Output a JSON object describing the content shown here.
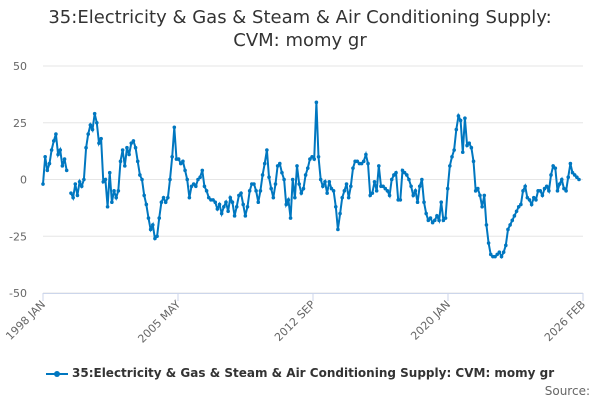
{
  "title_line1": "35:Electricity & Gas & Steam & Air Conditioning Supply:",
  "title_line2": "CVM: momy gr",
  "legend_label": "35:Electricity & Gas & Steam & Air Conditioning Supply: CVM: momy gr",
  "source_label": "Source:",
  "colors": {
    "series": "#0077c0",
    "grid": "#e6e6e6",
    "axis": "#ccd6eb"
  },
  "chart_data": {
    "type": "line",
    "title": "35:Electricity & Gas & Steam & Air Conditioning Supply: CVM: momy gr",
    "xlabel": "",
    "ylabel": "",
    "x_start": "1998 JAN",
    "x_end": "2026 FEB",
    "ylim": [
      -50,
      50
    ],
    "yticks": [
      50,
      25,
      0,
      -25,
      -50
    ],
    "xticks": [
      "1998 JAN",
      "2005 MAY",
      "2012 SEP",
      "2020 JAN",
      "2026 FEB"
    ],
    "legend": "bottom",
    "grid": true,
    "values": [
      -2,
      10,
      4,
      7,
      13,
      17,
      20,
      11,
      13,
      6,
      9,
      4,
      null,
      -6,
      -8,
      -2,
      -7,
      -1,
      -3,
      0,
      14,
      20,
      24,
      22,
      29,
      25,
      16,
      18,
      -1,
      0,
      -12,
      3,
      -10,
      -5,
      -8,
      -5,
      8,
      13,
      6,
      14,
      11,
      16,
      17,
      14,
      8,
      2,
      0,
      -7,
      -11,
      -17,
      -22,
      -20,
      -26,
      -25,
      -17,
      -10,
      -8,
      -10,
      -8,
      0,
      10,
      23,
      9,
      9,
      7,
      8,
      4,
      0,
      -8,
      -3,
      -2,
      -3,
      0,
      1,
      4,
      -3,
      -5,
      -8,
      -9,
      -9,
      -10,
      -13,
      -11,
      -15,
      -12,
      -10,
      -14,
      -8,
      -10,
      -16,
      -12,
      -7,
      -6,
      -11,
      -16,
      -12,
      -5,
      -2,
      -2,
      -5,
      -10,
      -5,
      2,
      7,
      13,
      1,
      -4,
      -8,
      -2,
      6,
      7,
      3,
      0,
      -11,
      -9,
      -17,
      0,
      -8,
      6,
      -2,
      -6,
      -4,
      2,
      5,
      9,
      10,
      9,
      34,
      10,
      0,
      -3,
      -1,
      -6,
      -1,
      -4,
      -5,
      -12,
      -22,
      -15,
      -8,
      -5,
      -2,
      -8,
      -3,
      5,
      8,
      8,
      7,
      7,
      8,
      11,
      7,
      -7,
      -6,
      -1,
      -5,
      6,
      -3,
      -3,
      -4,
      -5,
      -7,
      0,
      2,
      3,
      -9,
      -9,
      4,
      3,
      2,
      0,
      -3,
      -7,
      -5,
      -10,
      -3,
      0,
      -10,
      -15,
      -18,
      -17,
      -19,
      -18,
      -16,
      -18,
      -10,
      -18,
      -17,
      -4,
      6,
      10,
      13,
      22,
      28,
      26,
      12,
      27,
      15,
      16,
      14,
      8,
      -5,
      -4,
      -7,
      -12,
      -7,
      -20,
      -28,
      -33,
      -34,
      -34,
      -33,
      -32,
      -34,
      -32,
      -29,
      -22,
      -20,
      -18,
      -16,
      -14,
      -12,
      -11,
      -5,
      -3,
      -8,
      -9,
      -11,
      -8,
      -9,
      -5,
      -5,
      -7,
      -4,
      -3,
      -5,
      2,
      6,
      5,
      -5,
      -2,
      0,
      -4,
      -5,
      1,
      7,
      3,
      2,
      1,
      0
    ]
  }
}
